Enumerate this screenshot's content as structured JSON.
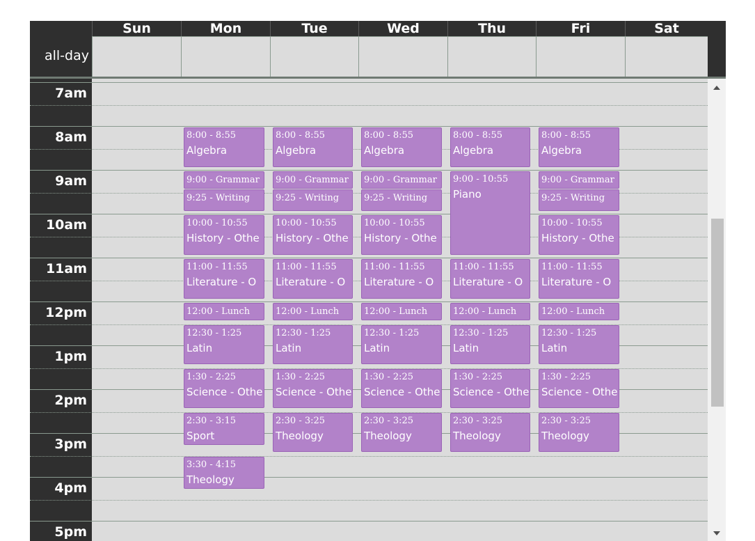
{
  "days": [
    "Sun",
    "Mon",
    "Tue",
    "Wed",
    "Thu",
    "Fri",
    "Sat"
  ],
  "all_day_label": "all-day",
  "hours": [
    "7am",
    "8am",
    "9am",
    "10am",
    "11am",
    "12pm",
    "1pm",
    "2pm",
    "3pm",
    "4pm",
    "5pm"
  ],
  "colors": {
    "event_bg": "#b282c9",
    "event_border": "#9a63b6",
    "header_bg": "#2f2f2f",
    "grid_bg": "#dcdcdc"
  },
  "events": [
    {
      "day": 1,
      "start": "8:00",
      "end": "8:55",
      "time": "8:00 - 8:55",
      "title": "Algebra"
    },
    {
      "day": 2,
      "start": "8:00",
      "end": "8:55",
      "time": "8:00 - 8:55",
      "title": "Algebra"
    },
    {
      "day": 3,
      "start": "8:00",
      "end": "8:55",
      "time": "8:00 - 8:55",
      "title": "Algebra"
    },
    {
      "day": 4,
      "start": "8:00",
      "end": "8:55",
      "time": "8:00 - 8:55",
      "title": "Algebra"
    },
    {
      "day": 5,
      "start": "8:00",
      "end": "8:55",
      "time": "8:00 - 8:55",
      "title": "Algebra"
    },
    {
      "day": 1,
      "start": "9:00",
      "end": "9:25",
      "time": "9:00 - Grammar",
      "title": ""
    },
    {
      "day": 2,
      "start": "9:00",
      "end": "9:25",
      "time": "9:00 - Grammar",
      "title": ""
    },
    {
      "day": 3,
      "start": "9:00",
      "end": "9:25",
      "time": "9:00 - Grammar",
      "title": ""
    },
    {
      "day": 5,
      "start": "9:00",
      "end": "9:25",
      "time": "9:00 - Grammar",
      "title": ""
    },
    {
      "day": 4,
      "start": "9:00",
      "end": "10:55",
      "time": "9:00 - 10:55",
      "title": "Piano"
    },
    {
      "day": 1,
      "start": "9:25",
      "end": "9:55",
      "time": "9:25 - Writing",
      "title": ""
    },
    {
      "day": 2,
      "start": "9:25",
      "end": "9:55",
      "time": "9:25 - Writing",
      "title": ""
    },
    {
      "day": 3,
      "start": "9:25",
      "end": "9:55",
      "time": "9:25 - Writing",
      "title": ""
    },
    {
      "day": 5,
      "start": "9:25",
      "end": "9:55",
      "time": "9:25 - Writing",
      "title": ""
    },
    {
      "day": 1,
      "start": "10:00",
      "end": "10:55",
      "time": "10:00 - 10:55",
      "title": "History - Othe"
    },
    {
      "day": 2,
      "start": "10:00",
      "end": "10:55",
      "time": "10:00 - 10:55",
      "title": "History - Othe"
    },
    {
      "day": 3,
      "start": "10:00",
      "end": "10:55",
      "time": "10:00 - 10:55",
      "title": "History - Othe"
    },
    {
      "day": 5,
      "start": "10:00",
      "end": "10:55",
      "time": "10:00 - 10:55",
      "title": "History - Othe"
    },
    {
      "day": 1,
      "start": "11:00",
      "end": "11:55",
      "time": "11:00 - 11:55",
      "title": "Literature - O"
    },
    {
      "day": 2,
      "start": "11:00",
      "end": "11:55",
      "time": "11:00 - 11:55",
      "title": "Literature - O"
    },
    {
      "day": 3,
      "start": "11:00",
      "end": "11:55",
      "time": "11:00 - 11:55",
      "title": "Literature - O"
    },
    {
      "day": 4,
      "start": "11:00",
      "end": "11:55",
      "time": "11:00 - 11:55",
      "title": "Literature - O"
    },
    {
      "day": 5,
      "start": "11:00",
      "end": "11:55",
      "time": "11:00 - 11:55",
      "title": "Literature - O"
    },
    {
      "day": 1,
      "start": "12:00",
      "end": "12:25",
      "time": "12:00 - Lunch",
      "title": ""
    },
    {
      "day": 2,
      "start": "12:00",
      "end": "12:25",
      "time": "12:00 - Lunch",
      "title": ""
    },
    {
      "day": 3,
      "start": "12:00",
      "end": "12:25",
      "time": "12:00 - Lunch",
      "title": ""
    },
    {
      "day": 4,
      "start": "12:00",
      "end": "12:25",
      "time": "12:00 - Lunch",
      "title": ""
    },
    {
      "day": 5,
      "start": "12:00",
      "end": "12:25",
      "time": "12:00 - Lunch",
      "title": ""
    },
    {
      "day": 1,
      "start": "12:30",
      "end": "1:25",
      "time": "12:30 - 1:25",
      "title": "Latin"
    },
    {
      "day": 2,
      "start": "12:30",
      "end": "1:25",
      "time": "12:30 - 1:25",
      "title": "Latin"
    },
    {
      "day": 3,
      "start": "12:30",
      "end": "1:25",
      "time": "12:30 - 1:25",
      "title": "Latin"
    },
    {
      "day": 4,
      "start": "12:30",
      "end": "1:25",
      "time": "12:30 - 1:25",
      "title": "Latin"
    },
    {
      "day": 5,
      "start": "12:30",
      "end": "1:25",
      "time": "12:30 - 1:25",
      "title": "Latin"
    },
    {
      "day": 1,
      "start": "1:30",
      "end": "2:25",
      "time": "1:30 - 2:25",
      "title": "Science - Othe"
    },
    {
      "day": 2,
      "start": "1:30",
      "end": "2:25",
      "time": "1:30 - 2:25",
      "title": "Science - Othe"
    },
    {
      "day": 3,
      "start": "1:30",
      "end": "2:25",
      "time": "1:30 - 2:25",
      "title": "Science - Othe"
    },
    {
      "day": 4,
      "start": "1:30",
      "end": "2:25",
      "time": "1:30 - 2:25",
      "title": "Science - Othe"
    },
    {
      "day": 5,
      "start": "1:30",
      "end": "2:25",
      "time": "1:30 - 2:25",
      "title": "Science - Othe"
    },
    {
      "day": 1,
      "start": "2:30",
      "end": "3:15",
      "time": "2:30 - 3:15",
      "title": "Sport"
    },
    {
      "day": 2,
      "start": "2:30",
      "end": "3:25",
      "time": "2:30 - 3:25",
      "title": "Theology"
    },
    {
      "day": 3,
      "start": "2:30",
      "end": "3:25",
      "time": "2:30 - 3:25",
      "title": "Theology"
    },
    {
      "day": 4,
      "start": "2:30",
      "end": "3:25",
      "time": "2:30 - 3:25",
      "title": "Theology"
    },
    {
      "day": 5,
      "start": "2:30",
      "end": "3:25",
      "time": "2:30 - 3:25",
      "title": "Theology"
    },
    {
      "day": 1,
      "start": "3:30",
      "end": "4:15",
      "time": "3:30 - 4:15",
      "title": "Theology"
    }
  ]
}
